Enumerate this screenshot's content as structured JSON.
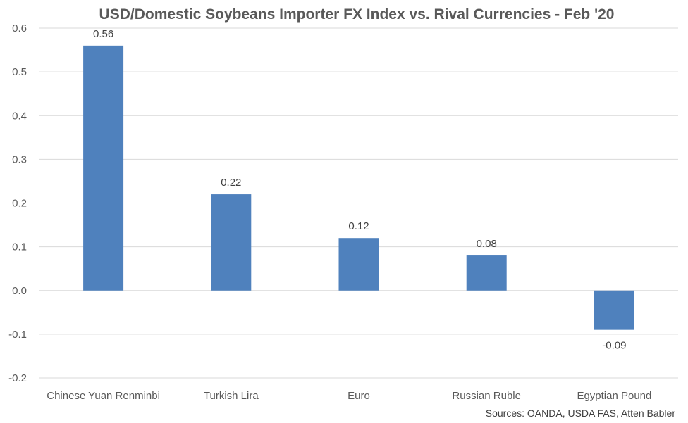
{
  "chart_data": {
    "type": "bar",
    "title": "USD/Domestic Soybeans Importer FX Index vs. Rival Currencies - Feb '20",
    "xlabel": "",
    "ylabel": "",
    "categories": [
      "Chinese Yuan Renminbi",
      "Turkish Lira",
      "Euro",
      "Russian Ruble",
      "Egyptian Pound"
    ],
    "values": [
      0.56,
      0.22,
      0.12,
      0.08,
      -0.09
    ],
    "data_labels": [
      "0.56",
      "0.22",
      "0.12",
      "0.08",
      "-0.09"
    ],
    "ylim": [
      -0.2,
      0.6
    ],
    "yticks": [
      "-0.2",
      "-0.1",
      "0.0",
      "0.1",
      "0.2",
      "0.3",
      "0.4",
      "0.5",
      "0.6"
    ],
    "grid": true,
    "legend": "none",
    "bar_color": "#4F81BD",
    "source": "Sources: OANDA, USDA FAS, Atten Babler"
  }
}
